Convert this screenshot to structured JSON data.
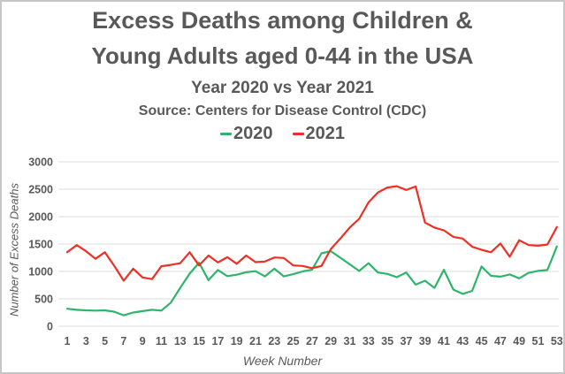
{
  "colors": {
    "text": "#595959",
    "gridline": "#dcdcdc",
    "background": "#ffffff",
    "frame_border": "#c6c6c6",
    "series_2020": "#2eb56a",
    "series_2021": "#ee2f26"
  },
  "chart_data": {
    "type": "line",
    "title_lines": [
      "Excess Deaths among Children &",
      "Young Adults aged 0-44 in the USA"
    ],
    "subtitle": "Year 2020 vs Year 2021",
    "source": "Source: Centers for Disease Control (CDC)",
    "xlabel": "Week Number",
    "ylabel": "Number of Excess Deaths",
    "x": [
      1,
      2,
      3,
      4,
      5,
      6,
      7,
      8,
      9,
      10,
      11,
      12,
      13,
      14,
      15,
      16,
      17,
      18,
      19,
      20,
      21,
      22,
      23,
      24,
      25,
      26,
      27,
      28,
      29,
      30,
      31,
      32,
      33,
      34,
      35,
      36,
      37,
      38,
      39,
      40,
      41,
      42,
      43,
      44,
      45,
      46,
      47,
      48,
      49,
      50,
      51,
      52,
      53
    ],
    "x_tick_labels": [
      "1",
      "3",
      "5",
      "7",
      "9",
      "11",
      "13",
      "15",
      "17",
      "19",
      "21",
      "23",
      "25",
      "27",
      "29",
      "31",
      "33",
      "35",
      "37",
      "39",
      "41",
      "43",
      "45",
      "47",
      "49",
      "51",
      "53"
    ],
    "y_ticks": [
      "0",
      "500",
      "1000",
      "1500",
      "2000",
      "2500",
      "3000"
    ],
    "ylim": [
      0,
      3000
    ],
    "grid": "horizontal-only",
    "legend_position": "top-center",
    "series": [
      {
        "name": "2020",
        "color": "#2eb56a",
        "values": [
          320,
          300,
          290,
          285,
          290,
          265,
          200,
          250,
          275,
          300,
          285,
          430,
          700,
          960,
          1160,
          840,
          1025,
          915,
          940,
          985,
          1005,
          910,
          1050,
          910,
          950,
          1000,
          1030,
          1330,
          1370,
          1250,
          1130,
          1010,
          1150,
          980,
          955,
          895,
          980,
          760,
          830,
          700,
          1030,
          670,
          590,
          645,
          1090,
          920,
          905,
          945,
          875,
          975,
          1010,
          1025,
          1455
        ]
      },
      {
        "name": "2021",
        "color": "#ee2f26",
        "values": [
          1350,
          1480,
          1370,
          1230,
          1350,
          1100,
          830,
          1050,
          890,
          860,
          1095,
          1120,
          1150,
          1350,
          1110,
          1290,
          1165,
          1260,
          1140,
          1290,
          1170,
          1180,
          1255,
          1245,
          1110,
          1100,
          1060,
          1100,
          1410,
          1600,
          1800,
          1960,
          2260,
          2440,
          2530,
          2555,
          2485,
          2550,
          1890,
          1800,
          1750,
          1630,
          1600,
          1450,
          1395,
          1350,
          1510,
          1270,
          1570,
          1480,
          1470,
          1490,
          1810
        ]
      }
    ]
  }
}
